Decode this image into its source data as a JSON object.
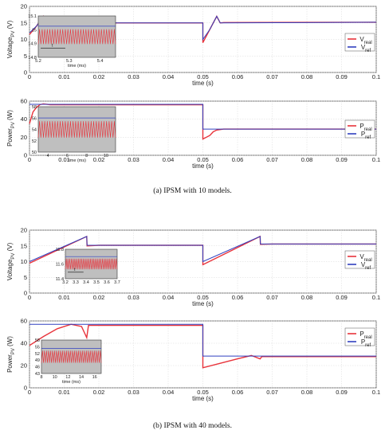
{
  "chart_data": [
    {
      "type": "line",
      "panel": "a-top",
      "ylabel": "Voltage_PV (V)",
      "xlabel": "time (s)",
      "xlim": [
        0,
        0.1
      ],
      "ylim": [
        0,
        20
      ],
      "xticks": [
        0,
        0.01,
        0.02,
        0.03,
        0.04,
        0.05,
        0.06,
        0.07,
        0.08,
        0.09,
        0.1
      ],
      "yticks": [
        0,
        5,
        10,
        15,
        20
      ],
      "legend": [
        "V_real",
        "V_ref"
      ],
      "legend_position": "right",
      "series": [
        {
          "name": "V_real",
          "color": "#e8333b",
          "x": [
            0,
            0.002,
            0.004,
            0.005,
            0.006,
            0.05,
            0.05,
            0.052,
            0.054,
            0.055,
            0.056,
            0.1
          ],
          "y": [
            11.5,
            14,
            17,
            14.9,
            15,
            15,
            9,
            13,
            17,
            15,
            15.1,
            15.2
          ]
        },
        {
          "name": "V_ref",
          "color": "#3040c0",
          "x": [
            0,
            0.002,
            0.004,
            0.0045,
            0.006,
            0.05,
            0.05,
            0.052,
            0.054,
            0.055,
            0.1
          ],
          "y": [
            12,
            14,
            17,
            15,
            15,
            15,
            10,
            13,
            17,
            15,
            15.2
          ]
        }
      ],
      "inset": {
        "xlabel": "time (ms)",
        "xlim": [
          5.2,
          5.45
        ],
        "ylim": [
          14.8,
          15.1
        ],
        "xticks": [
          5.2,
          5.3,
          5.4
        ],
        "yticks": [
          14.8,
          14.9,
          15.0,
          15.1
        ],
        "annotation": "t"
      }
    },
    {
      "type": "line",
      "panel": "a-bottom",
      "ylabel": "Power_PV (W)",
      "xlabel": "time (s)",
      "xlim": [
        0,
        0.1
      ],
      "ylim": [
        0,
        60
      ],
      "xticks": [
        0,
        0.01,
        0.02,
        0.03,
        0.04,
        0.05,
        0.06,
        0.07,
        0.08,
        0.09,
        0.1
      ],
      "yticks": [
        0,
        20,
        40,
        60
      ],
      "legend": [
        "P_real",
        "P_ref"
      ],
      "legend_position": "right",
      "series": [
        {
          "name": "P_real",
          "color": "#e8333b",
          "x": [
            0,
            0.001,
            0.002,
            0.003,
            0.004,
            0.006,
            0.05,
            0.05,
            0.052,
            0.053,
            0.054,
            0.056,
            0.1
          ],
          "y": [
            35,
            48,
            53,
            56,
            57,
            56,
            56,
            18,
            22,
            26,
            28,
            29,
            29
          ]
        },
        {
          "name": "P_ref",
          "color": "#3040c0",
          "x": [
            0,
            0.05,
            0.05,
            0.1
          ],
          "y": [
            56.5,
            56.5,
            29,
            29
          ]
        }
      ],
      "inset": {
        "xlabel": "time (ms)",
        "xlim": [
          3,
          11
        ],
        "ylim": [
          50,
          58
        ],
        "xticks": [
          4,
          6,
          8,
          10
        ],
        "yticks": [
          50,
          52,
          54,
          56,
          58
        ]
      }
    },
    {
      "type": "line",
      "panel": "b-top",
      "ylabel": "Voltage_PV (V)",
      "xlabel": "time (s)",
      "xlim": [
        0,
        0.1
      ],
      "ylim": [
        0,
        20
      ],
      "xticks": [
        0,
        0.01,
        0.02,
        0.03,
        0.04,
        0.05,
        0.06,
        0.07,
        0.08,
        0.09,
        0.1
      ],
      "yticks": [
        0,
        5,
        10,
        15,
        20
      ],
      "legend": [
        "V_real",
        "V_ref"
      ],
      "legend_position": "right",
      "series": [
        {
          "name": "V_real",
          "color": "#e8333b",
          "x": [
            0,
            0.0165,
            0.0166,
            0.02,
            0.05,
            0.05,
            0.0665,
            0.0666,
            0.07,
            0.1
          ],
          "y": [
            9.5,
            18,
            15,
            15.2,
            15.2,
            9,
            18,
            15.5,
            15.6,
            15.6
          ]
        },
        {
          "name": "V_ref",
          "color": "#3040c0",
          "x": [
            0,
            0.0165,
            0.0166,
            0.05,
            0.05,
            0.0665,
            0.0666,
            0.1
          ],
          "y": [
            10,
            18,
            15.2,
            15.2,
            10,
            18,
            15.6,
            15.6
          ]
        }
      ],
      "inset": {
        "xlabel": "",
        "xlim": [
          3.2,
          3.7
        ],
        "ylim": [
          11.4,
          11.8
        ],
        "xticks": [
          3.2,
          3.3,
          3.4,
          3.5,
          3.6,
          3.7
        ],
        "yticks": [
          11.4,
          11.6,
          11.8
        ],
        "annotation": "t"
      }
    },
    {
      "type": "line",
      "panel": "b-bottom",
      "ylabel": "Power_PV (W)",
      "xlabel": "time (s)",
      "xlim": [
        0,
        0.1
      ],
      "ylim": [
        0,
        60
      ],
      "xticks": [
        0,
        0.01,
        0.02,
        0.03,
        0.04,
        0.05,
        0.06,
        0.07,
        0.08,
        0.09,
        0.1
      ],
      "yticks": [
        0,
        20,
        40,
        60
      ],
      "legend": [
        "P_real",
        "P_ref"
      ],
      "legend_position": "right",
      "series": [
        {
          "name": "P_real",
          "color": "#e8333b",
          "x": [
            0,
            0.004,
            0.008,
            0.012,
            0.015,
            0.0165,
            0.017,
            0.02,
            0.05,
            0.05,
            0.055,
            0.06,
            0.064,
            0.0665,
            0.067,
            0.1
          ],
          "y": [
            38,
            46,
            53,
            57,
            55,
            45,
            56,
            56,
            56,
            18,
            22,
            26,
            29,
            26,
            28,
            28
          ]
        },
        {
          "name": "P_ref",
          "color": "#3040c0",
          "x": [
            0,
            0.05,
            0.05,
            0.1
          ],
          "y": [
            57,
            57,
            28.5,
            28.5
          ]
        }
      ],
      "inset": {
        "xlabel": "time (ms)",
        "xlim": [
          8,
          17
        ],
        "ylim": [
          43,
          58
        ],
        "xticks": [
          8,
          10,
          12,
          14,
          16
        ],
        "yticks": [
          43,
          46,
          49,
          52,
          55,
          58
        ]
      }
    }
  ],
  "captions": {
    "a": "(a)  IPSM with 10 models.",
    "b": "(b)  IPSM with 40 models."
  }
}
